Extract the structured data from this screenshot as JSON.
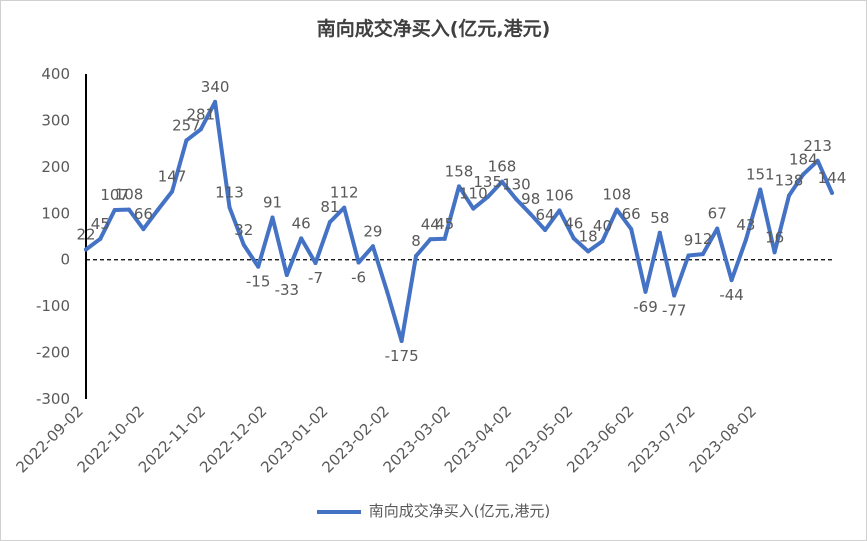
{
  "chart_data": {
    "type": "line",
    "title": "南向成交净买入(亿元,港元)",
    "ylim": [
      -300,
      400
    ],
    "yticks": [
      400,
      300,
      200,
      100,
      0,
      -100,
      -200,
      -300
    ],
    "x_tick_labels": [
      "2022-09-02",
      "2022-10-02",
      "2022-11-02",
      "2022-12-02",
      "2023-01-02",
      "2023-02-02",
      "2023-03-02",
      "2023-04-02",
      "2023-05-02",
      "2023-06-02",
      "2023-07-02",
      "2023-08-02"
    ],
    "series": [
      {
        "name": "南向成交净买入(亿元,港元)",
        "color": "#4472C4",
        "values": [
          22,
          45,
          107,
          108,
          66,
          107,
          147,
          257,
          281,
          340,
          113,
          32,
          -15,
          91,
          -33,
          46,
          -7,
          81,
          112,
          -6,
          29,
          -70,
          -175,
          8,
          44,
          45,
          158,
          110,
          135,
          168,
          130,
          98,
          64,
          106,
          46,
          18,
          40,
          108,
          66,
          -69,
          58,
          -77,
          9,
          12,
          67,
          -44,
          43,
          151,
          16,
          138,
          184,
          213,
          144
        ],
        "labels": [
          "22",
          "45",
          "107",
          "108",
          "66",
          "",
          "147",
          "257",
          "281",
          "340",
          "113",
          "32",
          "-15",
          "91",
          "-33",
          "46",
          "-7",
          "81",
          "112",
          "-6",
          "29",
          "",
          "-175",
          "8",
          "44",
          "45",
          "158",
          "110",
          "135",
          "168",
          "130",
          "98",
          "64",
          "106",
          "46",
          "18",
          "40",
          "108",
          "66",
          "-69",
          "58",
          "-77",
          "9",
          "12",
          "67",
          "-44",
          "43",
          "151",
          "16",
          "138",
          "184",
          "213",
          "144"
        ]
      }
    ],
    "grid": false,
    "legend": "bottom"
  }
}
